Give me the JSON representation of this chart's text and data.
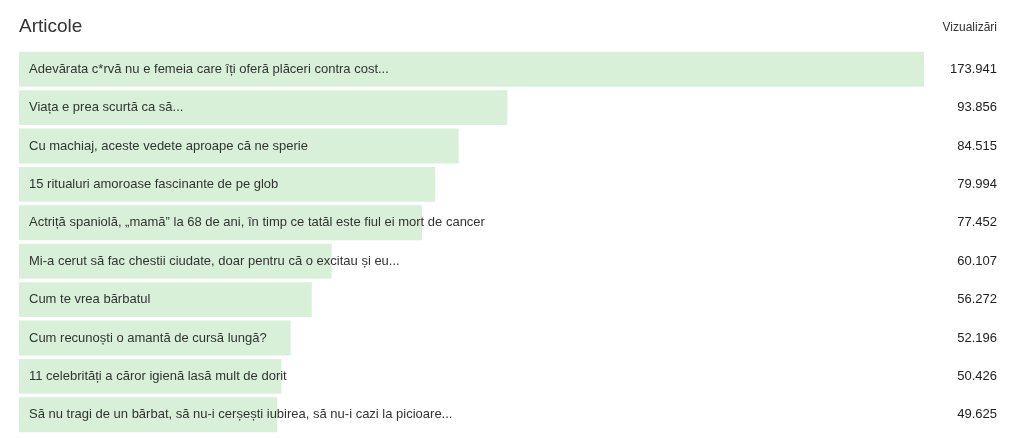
{
  "chart_data": {
    "type": "bar",
    "orientation": "horizontal",
    "title": "Articole",
    "xlabel": "Vizualizări",
    "categories": [
      "Adevărata c*rvă nu e femeia care îți oferă plăceri contra cost...",
      "Viața e prea scurtă ca să...",
      "Cu machiaj, aceste vedete aproape că ne sperie",
      "15 ritualuri amoroase fascinante de pe glob",
      "Actriță spaniolă, „mamă” la 68 de ani, în timp ce tatăl este fiul ei mort de cancer",
      "Mi-a cerut să fac chestii ciudate, doar pentru că o excitau și eu...",
      "Cum te vrea bărbatul",
      "Cum recunoști o amantă de cursă lungă?",
      "11 celebrități a căror igienă lasă mult de dorit",
      "Să nu tragi de un bărbat, să nu-i cerșești iubirea, să nu-i cazi la picioare..."
    ],
    "values": [
      173941,
      93856,
      84515,
      79994,
      77452,
      60107,
      56272,
      52196,
      50426,
      49625
    ],
    "value_labels": [
      "173.941",
      "93.856",
      "84.515",
      "79.994",
      "77.452",
      "60.107",
      "56.272",
      "52.196",
      "50.426",
      "49.625"
    ],
    "color": "#d8f0d8",
    "tick_labels": "y"
  }
}
